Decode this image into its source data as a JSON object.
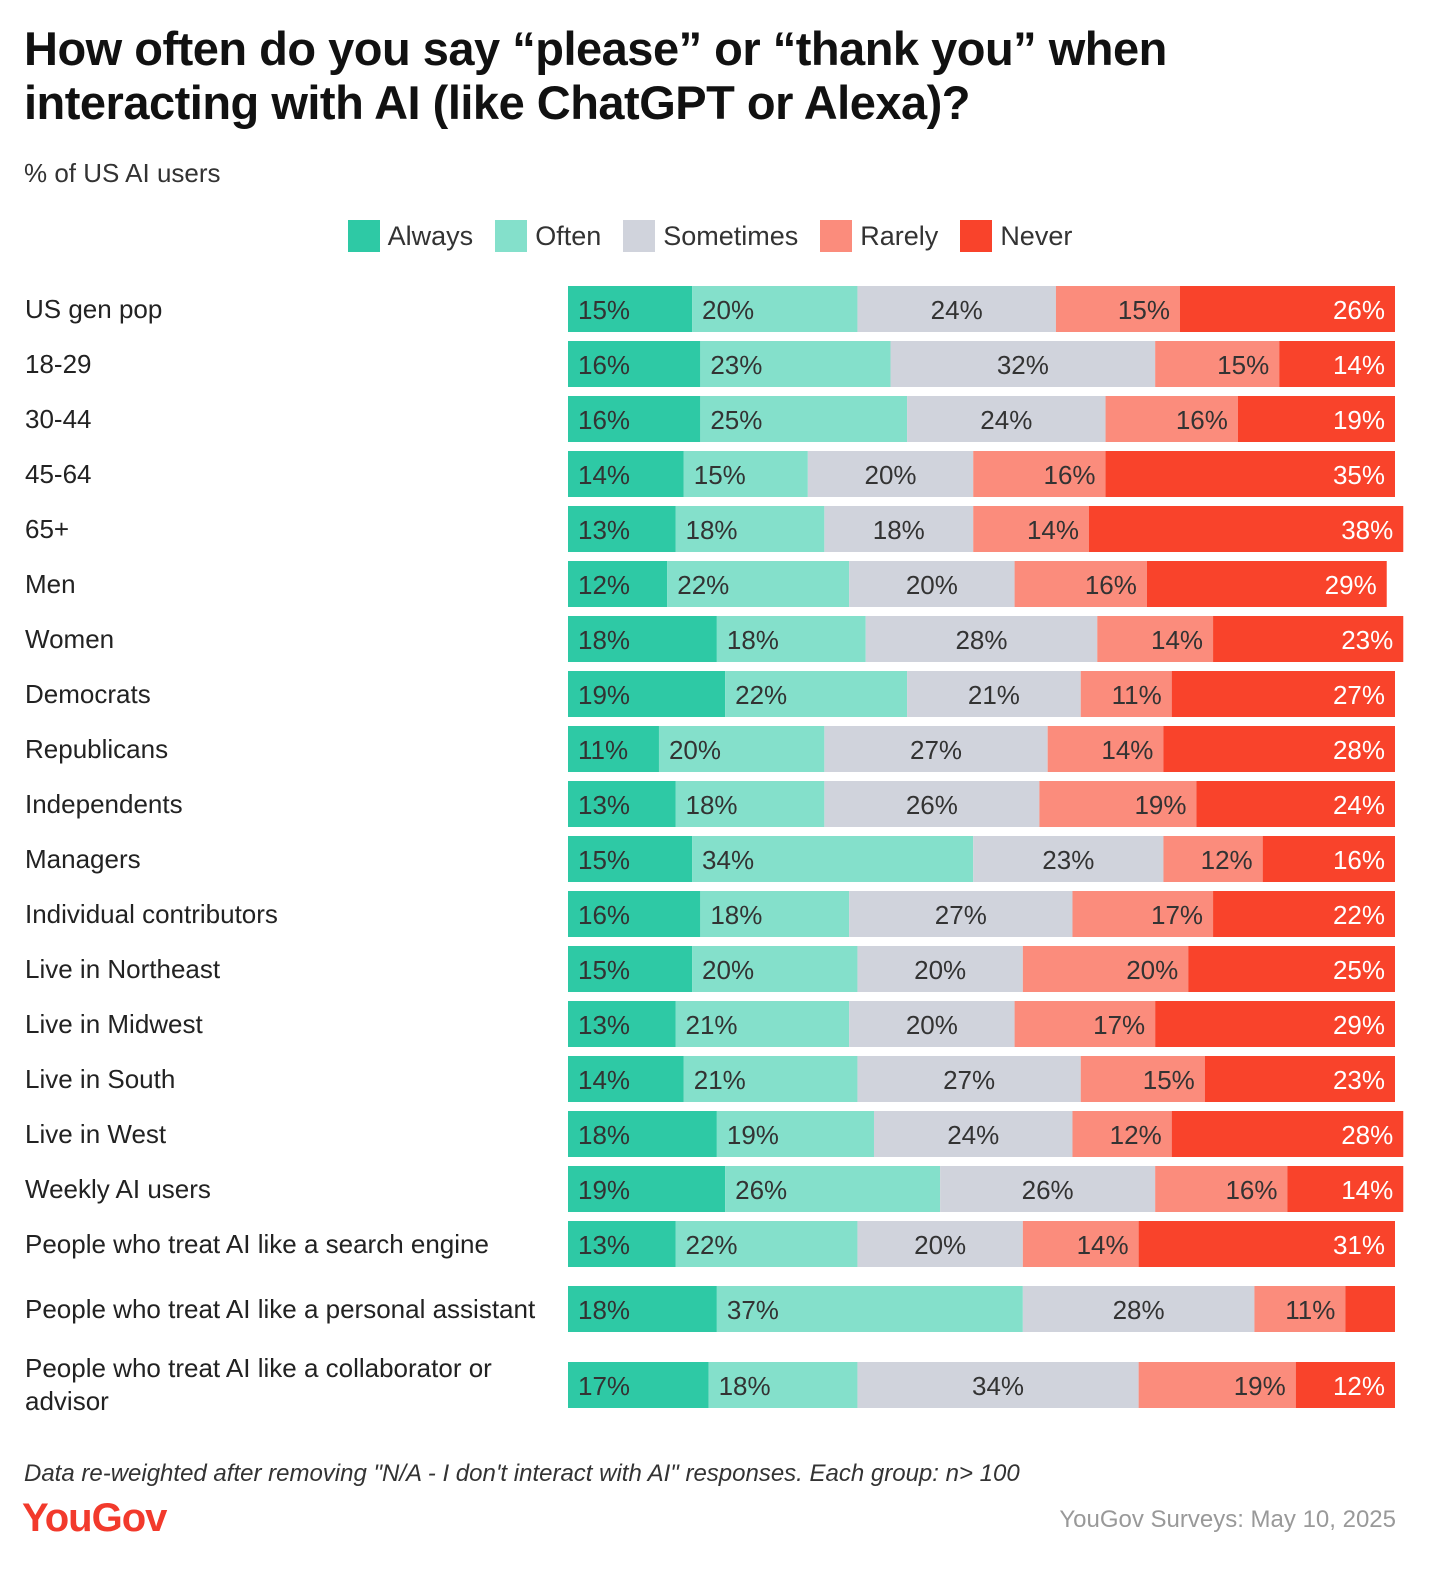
{
  "chart_data": {
    "type": "bar",
    "orientation": "horizontal",
    "stacked": true,
    "title": "How often do you say “please” or “thank you” when interacting with AI (like ChatGPT or Alexa)?",
    "subtitle": "% of US AI users",
    "note": "Data re-weighted after removing \"N/A - I don't interact with AI\" responses. Each group: n> 100",
    "logo": "YouGov",
    "source": "YouGov Surveys: May 10, 2025",
    "legend": "top",
    "xlim": [
      0,
      100
    ],
    "categories": [
      "US gen pop",
      "18-29",
      "30-44",
      "45-64",
      "65+",
      "Men",
      "Women",
      "Democrats",
      "Republicans",
      "Independents",
      "Managers",
      "Individual contributors",
      "Live in Northeast",
      "Live in Midwest",
      "Live in South",
      "Live in West",
      "Weekly AI users",
      "People who treat AI like a search engine",
      "People who treat AI like a personal assistant",
      "People who treat AI like a collaborator or advisor"
    ],
    "series": [
      {
        "name": "Always",
        "color": "#2ec9a5",
        "values": [
          15,
          16,
          16,
          14,
          13,
          12,
          18,
          19,
          11,
          13,
          15,
          16,
          15,
          13,
          14,
          18,
          19,
          13,
          18,
          17
        ],
        "value_labels": [
          "15%",
          "16%",
          "16%",
          "14%",
          "13%",
          "12%",
          "18%",
          "19%",
          "11%",
          "13%",
          "15%",
          "16%",
          "15%",
          "13%",
          "14%",
          "18%",
          "19%",
          "13%",
          "18%",
          "17%"
        ]
      },
      {
        "name": "Often",
        "color": "#84e0cb",
        "values": [
          20,
          23,
          25,
          15,
          18,
          22,
          18,
          22,
          20,
          18,
          34,
          18,
          20,
          21,
          21,
          19,
          26,
          22,
          37,
          18
        ],
        "value_labels": [
          "20%",
          "23%",
          "25%",
          "15%",
          "18%",
          "22%",
          "18%",
          "22%",
          "20%",
          "18%",
          "34%",
          "18%",
          "20%",
          "21%",
          "21%",
          "19%",
          "26%",
          "22%",
          "37%",
          "18%"
        ]
      },
      {
        "name": "Sometimes",
        "color": "#d0d3dc",
        "values": [
          24,
          32,
          24,
          20,
          18,
          20,
          28,
          21,
          27,
          26,
          23,
          27,
          20,
          20,
          27,
          24,
          26,
          20,
          28,
          34
        ],
        "value_labels": [
          "24%",
          "32%",
          "24%",
          "20%",
          "18%",
          "20%",
          "28%",
          "21%",
          "27%",
          "26%",
          "23%",
          "27%",
          "20%",
          "20%",
          "27%",
          "24%",
          "26%",
          "20%",
          "28%",
          "34%"
        ]
      },
      {
        "name": "Rarely",
        "color": "#fb8c7c",
        "values": [
          15,
          15,
          16,
          16,
          14,
          16,
          14,
          11,
          14,
          19,
          12,
          17,
          20,
          17,
          15,
          12,
          16,
          14,
          11,
          19
        ],
        "value_labels": [
          "15%",
          "15%",
          "16%",
          "16%",
          "14%",
          "16%",
          "14%",
          "11%",
          "14%",
          "19%",
          "12%",
          "17%",
          "20%",
          "17%",
          "15%",
          "12%",
          "16%",
          "14%",
          "11%",
          "19%"
        ]
      },
      {
        "name": "Never",
        "color": "#f9432b",
        "values": [
          26,
          14,
          19,
          35,
          38,
          29,
          23,
          27,
          28,
          24,
          16,
          22,
          25,
          29,
          23,
          28,
          14,
          31,
          6,
          12
        ],
        "value_labels": [
          "26%",
          "14%",
          "19%",
          "35%",
          "38%",
          "29%",
          "23%",
          "27%",
          "28%",
          "24%",
          "16%",
          "22%",
          "25%",
          "29%",
          "23%",
          "28%",
          "14%",
          "31%",
          null,
          "12%"
        ]
      }
    ]
  }
}
